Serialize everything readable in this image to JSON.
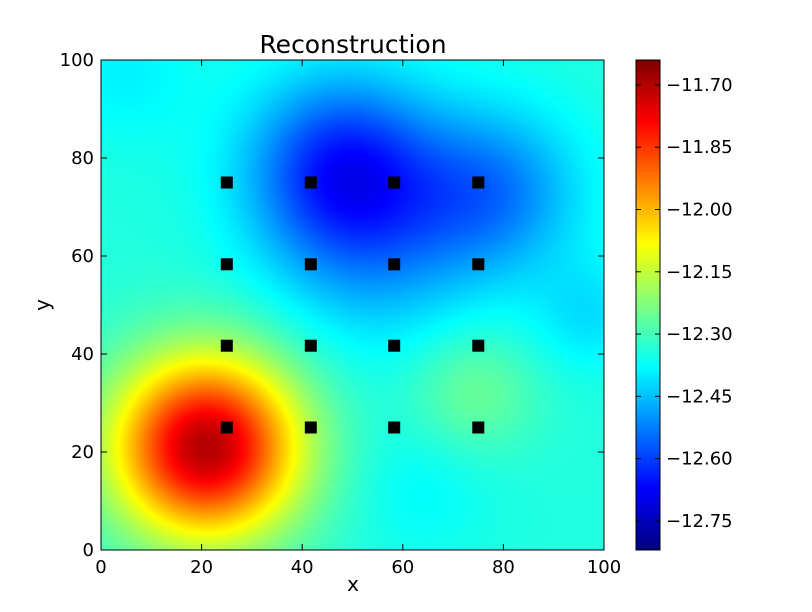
{
  "chart_data": {
    "type": "heatmap",
    "title": "Reconstruction",
    "xlabel": "x",
    "ylabel": "y",
    "xlim": [
      0,
      100
    ],
    "ylim": [
      0,
      100
    ],
    "xticks": [
      "0",
      "20",
      "40",
      "60",
      "80",
      "100"
    ],
    "xtick_values": [
      0,
      20,
      40,
      60,
      80,
      100
    ],
    "yticks": [
      "0",
      "20",
      "40",
      "60",
      "80",
      "100"
    ],
    "ytick_values": [
      0,
      20,
      40,
      60,
      80,
      100
    ],
    "colormap": "jet",
    "colorbar": {
      "range": [
        -12.82,
        -11.64
      ],
      "ticks": [
        "−11.70",
        "−11.85",
        "−12.00",
        "−12.15",
        "−12.30",
        "−12.45",
        "−12.60",
        "−12.75"
      ],
      "tick_values": [
        -11.7,
        -11.85,
        -12.0,
        -12.15,
        -12.3,
        -12.45,
        -12.6,
        -12.75
      ]
    },
    "field": {
      "base": -12.34,
      "bumps": [
        {
          "x": 21,
          "y": 21,
          "sigma": 13,
          "amplitude": 0.64
        },
        {
          "x": 48,
          "y": 78,
          "sigma": 13,
          "amplitude": -0.28
        },
        {
          "x": 78,
          "y": 73,
          "sigma": 12,
          "amplitude": -0.18
        },
        {
          "x": 55,
          "y": 62,
          "sigma": 15,
          "amplitude": -0.12
        },
        {
          "x": 5,
          "y": 97,
          "sigma": 10,
          "amplitude": -0.05
        },
        {
          "x": 74,
          "y": 32,
          "sigma": 9,
          "amplitude": 0.09
        },
        {
          "x": 64,
          "y": 13,
          "sigma": 10,
          "amplitude": -0.04
        },
        {
          "x": 97,
          "y": 48,
          "sigma": 8,
          "amplitude": -0.07
        }
      ]
    },
    "markers": {
      "shape": "square",
      "color": "#000000",
      "points": [
        {
          "x": 25,
          "y": 25
        },
        {
          "x": 41.7,
          "y": 25
        },
        {
          "x": 58.3,
          "y": 25
        },
        {
          "x": 75,
          "y": 25
        },
        {
          "x": 25,
          "y": 41.7
        },
        {
          "x": 41.7,
          "y": 41.7
        },
        {
          "x": 58.3,
          "y": 41.7
        },
        {
          "x": 75,
          "y": 41.7
        },
        {
          "x": 25,
          "y": 58.3
        },
        {
          "x": 41.7,
          "y": 58.3
        },
        {
          "x": 58.3,
          "y": 58.3
        },
        {
          "x": 75,
          "y": 58.3
        },
        {
          "x": 25,
          "y": 75
        },
        {
          "x": 41.7,
          "y": 75
        },
        {
          "x": 58.3,
          "y": 75
        },
        {
          "x": 75,
          "y": 75
        }
      ]
    }
  }
}
